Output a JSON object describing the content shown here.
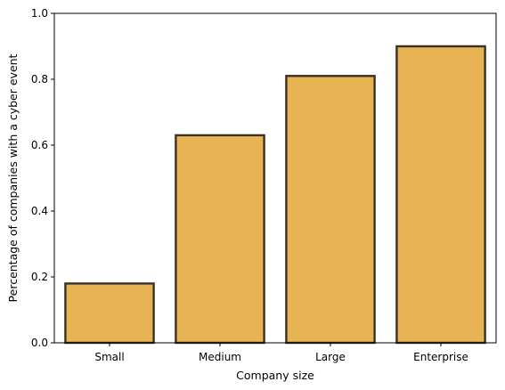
{
  "chart_data": {
    "type": "bar",
    "title": "",
    "xlabel": "Company size",
    "ylabel": "Percentage of companies with a cyber event",
    "categories": [
      "Small",
      "Medium",
      "Large",
      "Enterprise"
    ],
    "values": [
      0.18,
      0.63,
      0.81,
      0.9
    ],
    "ylim": [
      0,
      1.0
    ],
    "yticks": [
      "0.0",
      "0.2",
      "0.4",
      "0.6",
      "0.8",
      "1.0"
    ],
    "grid": false,
    "legend": "none",
    "colors": {
      "bar_fill": "#e8b453",
      "bar_edge": "#3a3226",
      "axis": "#000000"
    }
  }
}
